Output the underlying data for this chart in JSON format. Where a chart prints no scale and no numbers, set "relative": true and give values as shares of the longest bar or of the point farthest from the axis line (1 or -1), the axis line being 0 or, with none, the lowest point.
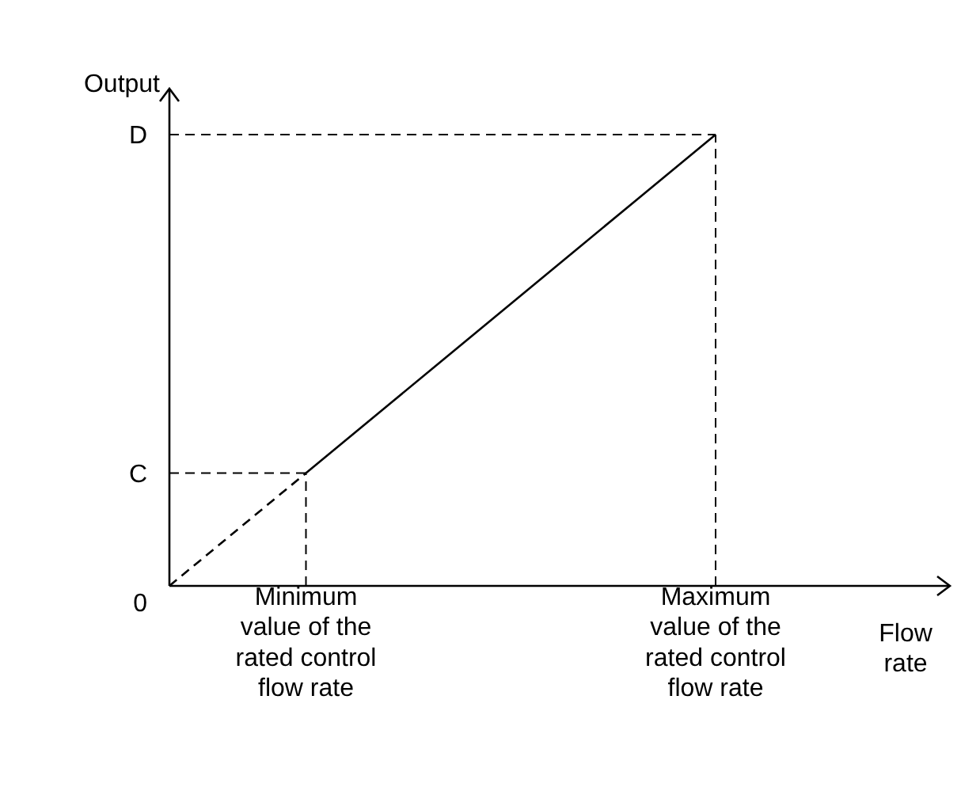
{
  "chart_data": {
    "type": "line",
    "xlabel": "Flow rate",
    "ylabel": "Output",
    "relative": true,
    "categories": [
      null,
      "Minimum value of the rated control flow rate",
      null,
      null,
      "Maximum value of the rated control flow rate"
    ],
    "series": [
      {
        "color": "#000000",
        "line_style": "dashed",
        "values": [
          0,
          0.25,
          null,
          null,
          null
        ]
      },
      {
        "color": "#000000",
        "line_style": "solid",
        "values": [
          null,
          0.25,
          0.5,
          0.75,
          1
        ]
      }
    ],
    "ref_lines": [
      {
        "axis": "y",
        "value": 0.25,
        "label": "C",
        "line_style": "dashed",
        "color": "#000000"
      },
      {
        "axis": "y",
        "value": 1,
        "label": "D",
        "line_style": "dashed",
        "color": "#000000"
      },
      {
        "axis": "x",
        "value": "Minimum value of the rated control flow rate",
        "line_style": "dashed",
        "color": "#000000"
      },
      {
        "axis": "x",
        "value": "Maximum value of the rated control flow rate",
        "line_style": "dashed",
        "color": "#000000"
      }
    ],
    "annotations": [
      "0"
    ],
    "marker": "none"
  }
}
